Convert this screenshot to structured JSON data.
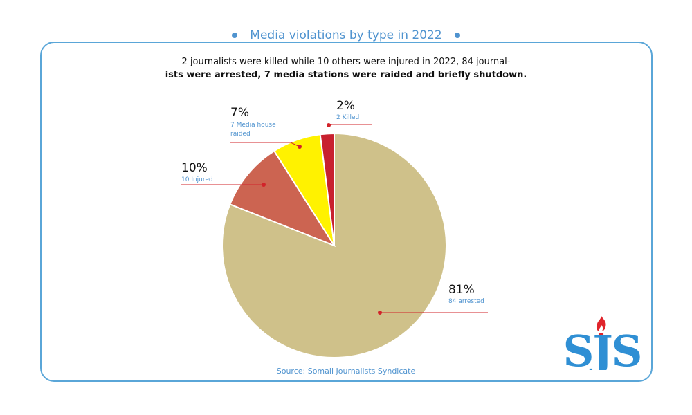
{
  "title": "Media violations by type in 2022",
  "subtitle_line1": "2 journalists were killed while 10 others were injured in 2022, 84 journal-",
  "subtitle_line2": "ists were arrested,  7 media stations were raided and briefly shutdown.",
  "source": "Source: Somali Journalists Syndicate",
  "logo": {
    "text": "SJS",
    "icon": "pen-flame-icon"
  },
  "colors": {
    "frame": "#5aa6d8",
    "title": "#4f93cf",
    "label_sub": "#4f93cf",
    "leader": "#d2232a"
  },
  "chart_data": {
    "type": "pie",
    "title": "",
    "slices": [
      {
        "label": "84 arrested",
        "percent_label": "81%",
        "value": 81,
        "color": "#cfc18a"
      },
      {
        "label": "10 Injured",
        "percent_label": "10%",
        "value": 10,
        "color": "#cc6451"
      },
      {
        "label": "7 Media house raided",
        "percent_label": "7%",
        "value": 7,
        "color": "#fff200"
      },
      {
        "label": "2 Killed",
        "percent_label": "2%",
        "value": 2,
        "color": "#c8202e"
      }
    ]
  }
}
